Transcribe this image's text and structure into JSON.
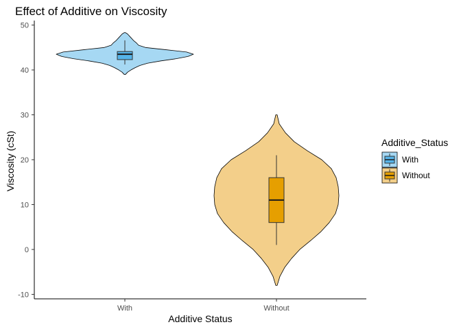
{
  "chart_data": {
    "type": "violin",
    "title": "Effect of Additive on Viscosity",
    "xlabel": "Additive Status",
    "ylabel": "Viscosity (cSt)",
    "ylim": [
      -11,
      51
    ],
    "yticks": [
      -10,
      0,
      10,
      20,
      30,
      40,
      50
    ],
    "grid": false,
    "legend": {
      "title": "Additive_Status",
      "position": "right",
      "entries": [
        "With",
        "Without"
      ]
    },
    "categories": [
      "With",
      "Without"
    ],
    "series": [
      {
        "name": "With",
        "violin_color": "#a6d8f3",
        "box_color": "#56b4e9",
        "range": [
          39,
          48.3
        ],
        "box": {
          "lower_whisker": 41.2,
          "q1": 42.3,
          "median": 43.5,
          "q3": 44.1,
          "upper_whisker": 46.6
        },
        "density": [
          [
            39,
            0.01
          ],
          [
            39.5,
            0.04
          ],
          [
            40,
            0.09
          ],
          [
            40.5,
            0.15
          ],
          [
            41,
            0.22
          ],
          [
            41.5,
            0.33
          ],
          [
            42,
            0.52
          ],
          [
            42.5,
            0.75
          ],
          [
            43,
            0.92
          ],
          [
            43.5,
            1.0
          ],
          [
            44,
            0.9
          ],
          [
            44.5,
            0.6
          ],
          [
            45,
            0.3
          ],
          [
            45.5,
            0.2
          ],
          [
            46,
            0.17
          ],
          [
            46.5,
            0.13
          ],
          [
            47,
            0.1
          ],
          [
            47.5,
            0.07
          ],
          [
            48,
            0.04
          ],
          [
            48.3,
            0.01
          ]
        ]
      },
      {
        "name": "Without",
        "violin_color": "#f3cf8a",
        "box_color": "#e69f00",
        "range": [
          -8,
          30
        ],
        "box": {
          "lower_whisker": 1,
          "q1": 6,
          "median": 11,
          "q3": 16,
          "upper_whisker": 21
        },
        "density": [
          [
            -8,
            0.01
          ],
          [
            -6,
            0.05
          ],
          [
            -4,
            0.12
          ],
          [
            -2,
            0.22
          ],
          [
            0,
            0.34
          ],
          [
            2,
            0.5
          ],
          [
            4,
            0.65
          ],
          [
            6,
            0.77
          ],
          [
            8,
            0.86
          ],
          [
            10,
            0.9
          ],
          [
            12,
            0.91
          ],
          [
            14,
            0.9
          ],
          [
            16,
            0.87
          ],
          [
            18,
            0.8
          ],
          [
            20,
            0.66
          ],
          [
            22,
            0.45
          ],
          [
            24,
            0.26
          ],
          [
            26,
            0.13
          ],
          [
            28,
            0.04
          ],
          [
            30,
            0.01
          ]
        ]
      }
    ]
  }
}
